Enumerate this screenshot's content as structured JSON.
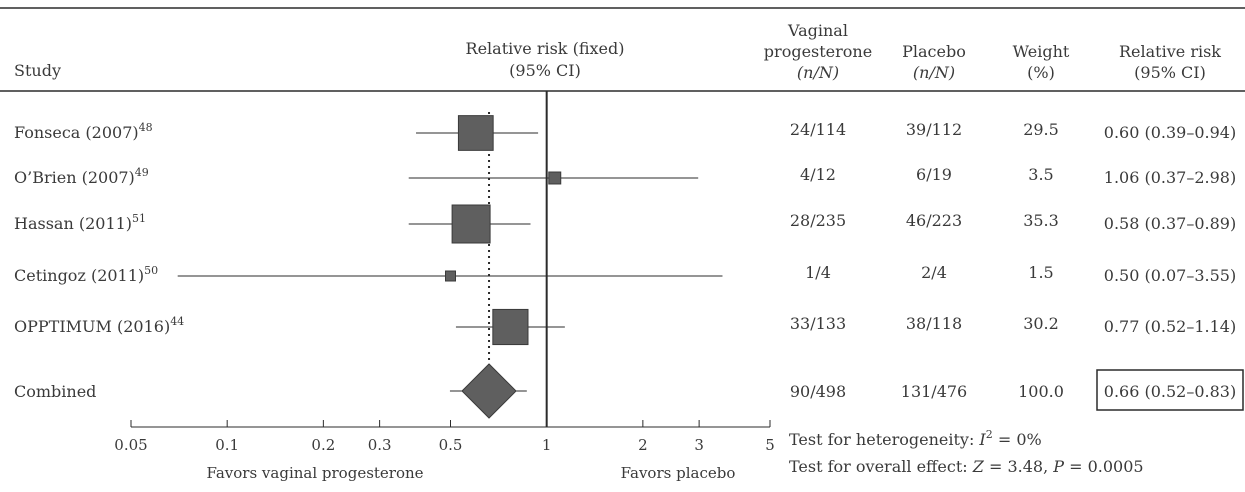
{
  "chart_data": {
    "type": "forest",
    "x_scale": "log",
    "xlim": [
      0.05,
      5
    ],
    "x_ticks": [
      0.05,
      0.1,
      0.2,
      0.3,
      0.5,
      1,
      2,
      3,
      5
    ],
    "x_tick_labels": [
      "0.05",
      "0.1",
      "0.2",
      "0.3",
      "0.5",
      "1",
      "2",
      "3",
      "5"
    ],
    "reference_line": 1,
    "pooled_reference_line": 0.66,
    "headers": {
      "study": "Study",
      "plot_line1": "Relative risk (fixed)",
      "plot_line2": "(95% CI)",
      "treat_line1": "Vaginal",
      "treat_line2": "progesterone",
      "treat_line3": "(n/N)",
      "placebo_line1": "Placebo",
      "placebo_line2": "(n/N)",
      "weight_line1": "Weight",
      "weight_line2": "(%)",
      "rr_line1": "Relative risk",
      "rr_line2": "(95% CI)"
    },
    "studies": [
      {
        "name": "Fonseca (2007)",
        "ref": "48",
        "treat": "24/114",
        "placebo": "39/112",
        "weight": "29.5",
        "rr_text": "0.60 (0.39–0.94)",
        "rr": 0.6,
        "lo": 0.39,
        "hi": 0.94,
        "w": 29.5
      },
      {
        "name": "O’Brien (2007)",
        "ref": "49",
        "treat": "4/12",
        "placebo": "6/19",
        "weight": "3.5",
        "rr_text": "1.06 (0.37–2.98)",
        "rr": 1.06,
        "lo": 0.37,
        "hi": 2.98,
        "w": 3.5
      },
      {
        "name": "Hassan (2011)",
        "ref": "51",
        "treat": "28/235",
        "placebo": "46/223",
        "weight": "35.3",
        "rr_text": "0.58 (0.37–0.89)",
        "rr": 0.58,
        "lo": 0.37,
        "hi": 0.89,
        "w": 35.3
      },
      {
        "name": "Cetingoz (2011)",
        "ref": "50",
        "treat": "1/4",
        "placebo": "2/4",
        "weight": "1.5",
        "rr_text": "0.50 (0.07–3.55)",
        "rr": 0.5,
        "lo": 0.07,
        "hi": 3.55,
        "w": 1.5
      },
      {
        "name": "OPPTIMUM (2016)",
        "ref": "44",
        "treat": "33/133",
        "placebo": "38/118",
        "weight": "30.2",
        "rr_text": "0.77 (0.52–1.14)",
        "rr": 0.77,
        "lo": 0.52,
        "hi": 1.14,
        "w": 30.2
      }
    ],
    "combined": {
      "name": "Combined",
      "treat": "90/498",
      "placebo": "131/476",
      "weight": "100.0",
      "rr_text": "0.66 (0.52–0.83)",
      "rr": 0.66,
      "lo": 0.52,
      "hi": 0.83
    },
    "favors_left": "Favors vaginal progesterone",
    "favors_right": "Favors placebo",
    "heterogeneity": {
      "label": "Test for heterogeneity: ",
      "stat": "I",
      "sup": "2",
      "value": " = 0%"
    },
    "overall_effect": {
      "label": "Test for overall effect: ",
      "z_sym": "Z",
      "z_val": " = 3.48, ",
      "p_sym": "P",
      "p_val": " = 0.0005"
    },
    "colors": {
      "marker": "#5f5f5f",
      "line": "#2b2b2b",
      "text": "#3a3a3a"
    }
  }
}
